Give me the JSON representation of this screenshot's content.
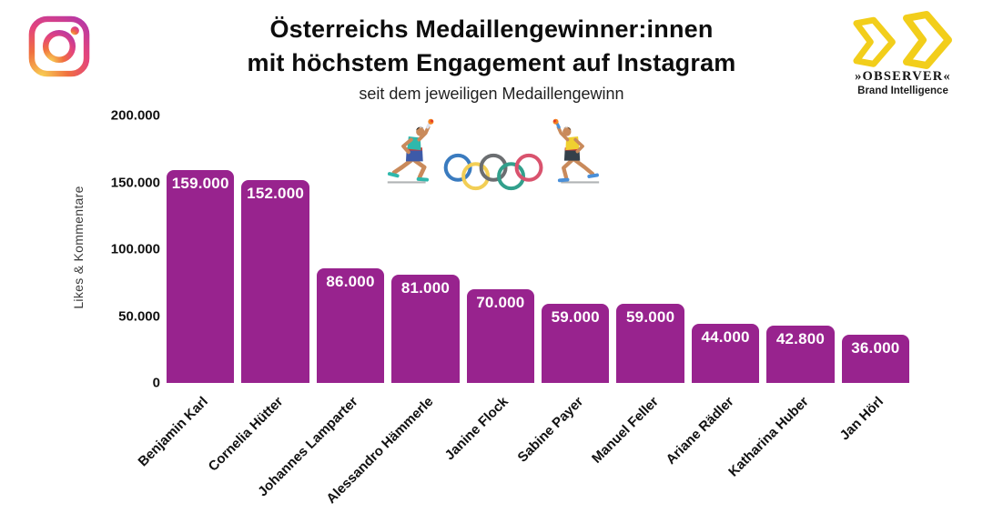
{
  "header": {
    "title_line1": "Österreichs Medaillengewinner:innen",
    "title_line2": "mit höchstem Engagement auf Instagram",
    "subtitle": "seit dem jeweiligen Medaillengewinn"
  },
  "logos": {
    "instagram": {
      "icon": "instagram-icon",
      "gradient_colors": [
        "#F8D053",
        "#F0703F",
        "#E4447C",
        "#9B30BF"
      ]
    },
    "observer": {
      "name": "»OBSERVER«",
      "tagline": "Brand Intelligence",
      "chevron_color": "#F2CE1B"
    }
  },
  "illustration": {
    "description": "two torch runners flanking olympic rings",
    "ring_colors": [
      "#3A7BBF",
      "#F2CE55",
      "#6B6E71",
      "#32A08C",
      "#D9536E"
    ]
  },
  "chart_data": {
    "type": "bar",
    "title": "Österreichs Medaillengewinner:innen mit höchstem Engagement auf Instagram",
    "subtitle": "seit dem jeweiligen Medaillengewinn",
    "xlabel": "",
    "ylabel": "Likes & Kommentare",
    "ylim": [
      0,
      200000
    ],
    "grid": false,
    "legend": "none",
    "bar_color": "#98238E",
    "value_label_color": "#FFFFFF",
    "categories": [
      "Benjamin Karl",
      "Cornelia Hütter",
      "Johannes Lamparter",
      "Alessandro Hämmerle",
      "Janine Flock",
      "Sabine Payer",
      "Manuel Feller",
      "Ariane Rädler",
      "Katharina Huber",
      "Jan Hörl"
    ],
    "values": [
      159000,
      152000,
      86000,
      81000,
      70000,
      59000,
      59000,
      44000,
      42800,
      36000
    ],
    "value_labels": [
      "159.000",
      "152.000",
      "86.000",
      "81.000",
      "70.000",
      "59.000",
      "59.000",
      "44.000",
      "42.800",
      "36.000"
    ],
    "yticks": [
      0,
      50000,
      100000,
      150000,
      200000
    ],
    "ytick_labels": [
      "0",
      "50.000",
      "100.000",
      "150.000",
      "200.000"
    ]
  }
}
